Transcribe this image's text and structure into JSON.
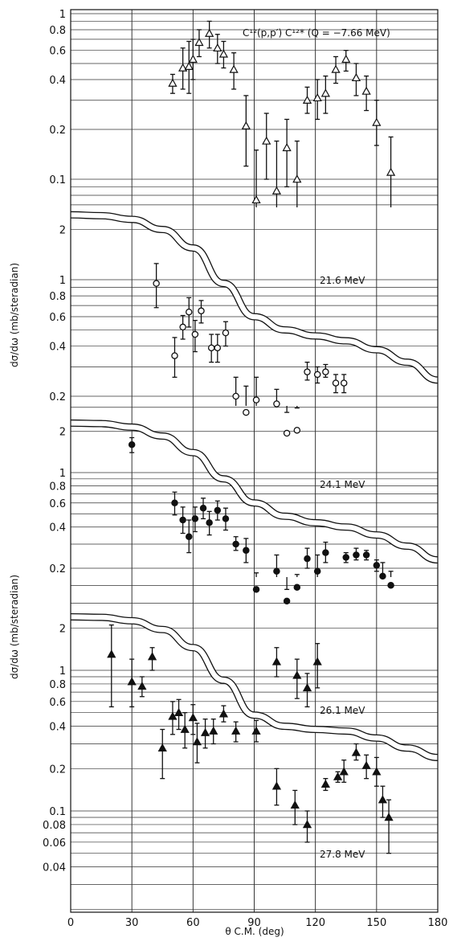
{
  "chart_data": {
    "type": "scatter",
    "title": "C¹²(p,p′) C¹²* (Q = −7.66 MeV)",
    "xlabel": "θ C.M. (deg)",
    "ylabel_upper": "dσ/dω (mb/steradian)",
    "ylabel_lower": "dσ/dω (mb/steradian)",
    "xlim": [
      0,
      180
    ],
    "x_ticks": [
      "0",
      "30",
      "60",
      "90",
      "120",
      "150",
      "180"
    ],
    "y_scale": "log",
    "grid": true,
    "panels": [
      {
        "name": "",
        "marker": "open-triangle",
        "y_ticks": [
          "1",
          "0.8",
          "0.6",
          "0.4",
          "0.2",
          "0.1"
        ],
        "points": [
          {
            "x": 50,
            "y": 0.38,
            "lo": 0.33,
            "hi": 0.43
          },
          {
            "x": 55,
            "y": 0.47,
            "lo": 0.35,
            "hi": 0.62
          },
          {
            "x": 58,
            "y": 0.48,
            "lo": 0.33,
            "hi": 0.68
          },
          {
            "x": 60,
            "y": 0.53,
            "lo": 0.4,
            "hi": 0.7
          },
          {
            "x": 63,
            "y": 0.67,
            "lo": 0.55,
            "hi": 0.8
          },
          {
            "x": 68,
            "y": 0.76,
            "lo": 0.62,
            "hi": 0.9
          },
          {
            "x": 72,
            "y": 0.62,
            "lo": 0.5,
            "hi": 0.75
          },
          {
            "x": 75,
            "y": 0.57,
            "lo": 0.47,
            "hi": 0.68
          },
          {
            "x": 80,
            "y": 0.46,
            "lo": 0.35,
            "hi": 0.58
          },
          {
            "x": 86,
            "y": 0.21,
            "lo": 0.12,
            "hi": 0.32
          },
          {
            "x": 91,
            "y": 0.075,
            "lo": 0.012,
            "hi": 0.15
          },
          {
            "x": 96,
            "y": 0.17,
            "lo": 0.1,
            "hi": 0.25
          },
          {
            "x": 101,
            "y": 0.085,
            "lo": 0.012,
            "hi": 0.17
          },
          {
            "x": 106,
            "y": 0.155,
            "lo": 0.09,
            "hi": 0.23
          },
          {
            "x": 111,
            "y": 0.1,
            "lo": 0.012,
            "hi": 0.17
          },
          {
            "x": 116,
            "y": 0.3,
            "lo": 0.25,
            "hi": 0.36
          },
          {
            "x": 121,
            "y": 0.31,
            "lo": 0.23,
            "hi": 0.4
          },
          {
            "x": 125,
            "y": 0.33,
            "lo": 0.25,
            "hi": 0.42
          },
          {
            "x": 130,
            "y": 0.46,
            "lo": 0.38,
            "hi": 0.55
          },
          {
            "x": 135,
            "y": 0.53,
            "lo": 0.45,
            "hi": 0.6
          },
          {
            "x": 140,
            "y": 0.41,
            "lo": 0.32,
            "hi": 0.5
          },
          {
            "x": 145,
            "y": 0.34,
            "lo": 0.26,
            "hi": 0.42
          },
          {
            "x": 150,
            "y": 0.22,
            "lo": 0.16,
            "hi": 0.3
          },
          {
            "x": 157,
            "y": 0.11,
            "lo": 0.037,
            "hi": 0.18
          }
        ]
      },
      {
        "name": "21.6 MeV",
        "marker": "open-circle",
        "y_ticks": [
          "2",
          "1",
          "0.8",
          "0.6",
          "0.4",
          "0.2"
        ],
        "curve": [
          [
            0,
            2.45
          ],
          [
            15,
            2.42
          ],
          [
            30,
            2.3
          ],
          [
            45,
            2.0
          ],
          [
            60,
            1.55
          ],
          [
            75,
            0.95
          ],
          [
            90,
            0.6
          ],
          [
            105,
            0.5
          ],
          [
            120,
            0.46
          ],
          [
            135,
            0.43
          ],
          [
            150,
            0.38
          ],
          [
            165,
            0.32
          ],
          [
            180,
            0.25
          ]
        ],
        "points": [
          {
            "x": 42,
            "y": 0.95,
            "lo": 0.68,
            "hi": 1.25
          },
          {
            "x": 51,
            "y": 0.35,
            "lo": 0.26,
            "hi": 0.45
          },
          {
            "x": 55,
            "y": 0.52,
            "lo": 0.44,
            "hi": 0.61
          },
          {
            "x": 58,
            "y": 0.64,
            "lo": 0.52,
            "hi": 0.78
          },
          {
            "x": 61,
            "y": 0.47,
            "lo": 0.37,
            "hi": 0.57
          },
          {
            "x": 64,
            "y": 0.65,
            "lo": 0.55,
            "hi": 0.75
          },
          {
            "x": 69,
            "y": 0.39,
            "lo": 0.32,
            "hi": 0.47
          },
          {
            "x": 72,
            "y": 0.39,
            "lo": 0.32,
            "hi": 0.47
          },
          {
            "x": 76,
            "y": 0.48,
            "lo": 0.4,
            "hi": 0.56
          },
          {
            "x": 81,
            "y": 0.2,
            "lo": 0.15,
            "hi": 0.26
          },
          {
            "x": 86,
            "y": 0.16,
            "lo": 0.105,
            "hi": 0.23
          },
          {
            "x": 91,
            "y": 0.19,
            "lo": 0.13,
            "hi": 0.26
          },
          {
            "x": 101,
            "y": 0.18,
            "lo": 0.14,
            "hi": 0.22
          },
          {
            "x": 106,
            "y": 0.12,
            "lo": 0.09,
            "hi": 0.16
          },
          {
            "x": 111,
            "y": 0.125,
            "lo": 0.095,
            "hi": 0.17
          },
          {
            "x": 116,
            "y": 0.28,
            "lo": 0.25,
            "hi": 0.32
          },
          {
            "x": 121,
            "y": 0.27,
            "lo": 0.24,
            "hi": 0.3
          },
          {
            "x": 125,
            "y": 0.28,
            "lo": 0.26,
            "hi": 0.31
          },
          {
            "x": 130,
            "y": 0.24,
            "lo": 0.21,
            "hi": 0.27
          },
          {
            "x": 134,
            "y": 0.24,
            "lo": 0.21,
            "hi": 0.27
          }
        ]
      },
      {
        "name": "24.1 MeV",
        "marker": "filled-circle",
        "y_ticks": [
          "2",
          "1",
          "0.8",
          "0.6",
          "0.4",
          "0.2"
        ],
        "curve": [
          [
            0,
            2.3
          ],
          [
            15,
            2.28
          ],
          [
            30,
            2.15
          ],
          [
            45,
            1.85
          ],
          [
            60,
            1.4
          ],
          [
            75,
            0.9
          ],
          [
            90,
            0.6
          ],
          [
            105,
            0.48
          ],
          [
            120,
            0.43
          ],
          [
            135,
            0.4
          ],
          [
            150,
            0.35
          ],
          [
            165,
            0.29
          ],
          [
            180,
            0.23
          ]
        ],
        "points": [
          {
            "x": 30,
            "y": 1.6,
            "lo": 1.4,
            "hi": 1.8
          },
          {
            "x": 51,
            "y": 0.6,
            "lo": 0.49,
            "hi": 0.72
          },
          {
            "x": 55,
            "y": 0.45,
            "lo": 0.36,
            "hi": 0.56
          },
          {
            "x": 58,
            "y": 0.34,
            "lo": 0.26,
            "hi": 0.45
          },
          {
            "x": 61,
            "y": 0.46,
            "lo": 0.37,
            "hi": 0.56
          },
          {
            "x": 65,
            "y": 0.55,
            "lo": 0.46,
            "hi": 0.65
          },
          {
            "x": 68,
            "y": 0.43,
            "lo": 0.35,
            "hi": 0.52
          },
          {
            "x": 72,
            "y": 0.53,
            "lo": 0.45,
            "hi": 0.62
          },
          {
            "x": 76,
            "y": 0.46,
            "lo": 0.38,
            "hi": 0.55
          },
          {
            "x": 81,
            "y": 0.3,
            "lo": 0.27,
            "hi": 0.34
          },
          {
            "x": 86,
            "y": 0.27,
            "lo": 0.22,
            "hi": 0.33
          },
          {
            "x": 91,
            "y": 0.14,
            "lo": 0.11,
            "hi": 0.185
          },
          {
            "x": 101,
            "y": 0.19,
            "lo": 0.15,
            "hi": 0.25
          },
          {
            "x": 106,
            "y": 0.115,
            "lo": 0.1,
            "hi": 0.14
          },
          {
            "x": 111,
            "y": 0.145,
            "lo": 0.12,
            "hi": 0.18
          },
          {
            "x": 116,
            "y": 0.235,
            "lo": 0.2,
            "hi": 0.28
          },
          {
            "x": 121,
            "y": 0.19,
            "lo": 0.15,
            "hi": 0.25
          },
          {
            "x": 125,
            "y": 0.26,
            "lo": 0.22,
            "hi": 0.31
          },
          {
            "x": 135,
            "y": 0.24,
            "lo": 0.22,
            "hi": 0.26
          },
          {
            "x": 140,
            "y": 0.25,
            "lo": 0.23,
            "hi": 0.28
          },
          {
            "x": 145,
            "y": 0.25,
            "lo": 0.23,
            "hi": 0.27
          },
          {
            "x": 150,
            "y": 0.21,
            "lo": 0.19,
            "hi": 0.23
          },
          {
            "x": 153,
            "y": 0.175,
            "lo": 0.14,
            "hi": 0.22
          },
          {
            "x": 157,
            "y": 0.15,
            "lo": 0.12,
            "hi": 0.19
          }
        ]
      },
      {
        "name": "26.1 MeV",
        "marker": "filled-triangle",
        "y_ticks": [
          "2",
          "1",
          "0.8",
          "0.6",
          "0.4",
          "0.2",
          "0.1",
          "0.08",
          "0.06",
          "0.04"
        ],
        "curve": [
          [
            0,
            2.4
          ],
          [
            15,
            2.38
          ],
          [
            30,
            2.25
          ],
          [
            45,
            1.95
          ],
          [
            60,
            1.45
          ],
          [
            75,
            0.85
          ],
          [
            90,
            0.48
          ],
          [
            105,
            0.4
          ],
          [
            120,
            0.38
          ],
          [
            135,
            0.37
          ],
          [
            150,
            0.33
          ],
          [
            165,
            0.28
          ],
          [
            180,
            0.24
          ]
        ]
      },
      {
        "name": "27.8 MeV",
        "marker": "filled-triangle",
        "points": [
          {
            "x": 20,
            "y": 1.3,
            "lo": 0.55,
            "hi": 2.1
          },
          {
            "x": 30,
            "y": 0.83,
            "lo": 0.55,
            "hi": 1.2
          },
          {
            "x": 35,
            "y": 0.77,
            "lo": 0.65,
            "hi": 0.9
          },
          {
            "x": 40,
            "y": 1.25,
            "lo": 1.0,
            "hi": 1.45
          },
          {
            "x": 45,
            "y": 0.28,
            "lo": 0.17,
            "hi": 0.38
          },
          {
            "x": 50,
            "y": 0.47,
            "lo": 0.35,
            "hi": 0.6
          },
          {
            "x": 53,
            "y": 0.5,
            "lo": 0.38,
            "hi": 0.62
          },
          {
            "x": 56,
            "y": 0.38,
            "lo": 0.28,
            "hi": 0.5
          },
          {
            "x": 60,
            "y": 0.46,
            "lo": 0.35,
            "hi": 0.57
          },
          {
            "x": 62,
            "y": 0.31,
            "lo": 0.22,
            "hi": 0.42
          },
          {
            "x": 66,
            "y": 0.36,
            "lo": 0.28,
            "hi": 0.45
          },
          {
            "x": 70,
            "y": 0.37,
            "lo": 0.3,
            "hi": 0.45
          },
          {
            "x": 75,
            "y": 0.49,
            "lo": 0.43,
            "hi": 0.56
          },
          {
            "x": 81,
            "y": 0.37,
            "lo": 0.31,
            "hi": 0.43
          },
          {
            "x": 91,
            "y": 0.37,
            "lo": 0.31,
            "hi": 0.44
          },
          {
            "x": 101,
            "y": 1.15,
            "lo": 0.9,
            "hi": 1.45
          },
          {
            "x": 111,
            "y": 0.92,
            "lo": 0.63,
            "hi": 1.2
          },
          {
            "x": 116,
            "y": 0.75,
            "lo": 0.55,
            "hi": 0.95
          },
          {
            "x": 121,
            "y": 1.15,
            "lo": 0.75,
            "hi": 1.55
          },
          {
            "x": 101,
            "y": 0.15,
            "lo": 0.11,
            "hi": 0.2
          },
          {
            "x": 110,
            "y": 0.11,
            "lo": 0.08,
            "hi": 0.14
          },
          {
            "x": 116,
            "y": 0.08,
            "lo": 0.06,
            "hi": 0.1
          },
          {
            "x": 125,
            "y": 0.155,
            "lo": 0.14,
            "hi": 0.17
          },
          {
            "x": 131,
            "y": 0.175,
            "lo": 0.16,
            "hi": 0.19
          },
          {
            "x": 134,
            "y": 0.19,
            "lo": 0.16,
            "hi": 0.23
          },
          {
            "x": 140,
            "y": 0.26,
            "lo": 0.23,
            "hi": 0.3
          },
          {
            "x": 145,
            "y": 0.21,
            "lo": 0.17,
            "hi": 0.25
          },
          {
            "x": 150,
            "y": 0.19,
            "lo": 0.15,
            "hi": 0.24
          },
          {
            "x": 153,
            "y": 0.12,
            "lo": 0.09,
            "hi": 0.15
          },
          {
            "x": 156,
            "y": 0.09,
            "lo": 0.05,
            "hi": 0.12
          }
        ]
      }
    ]
  }
}
